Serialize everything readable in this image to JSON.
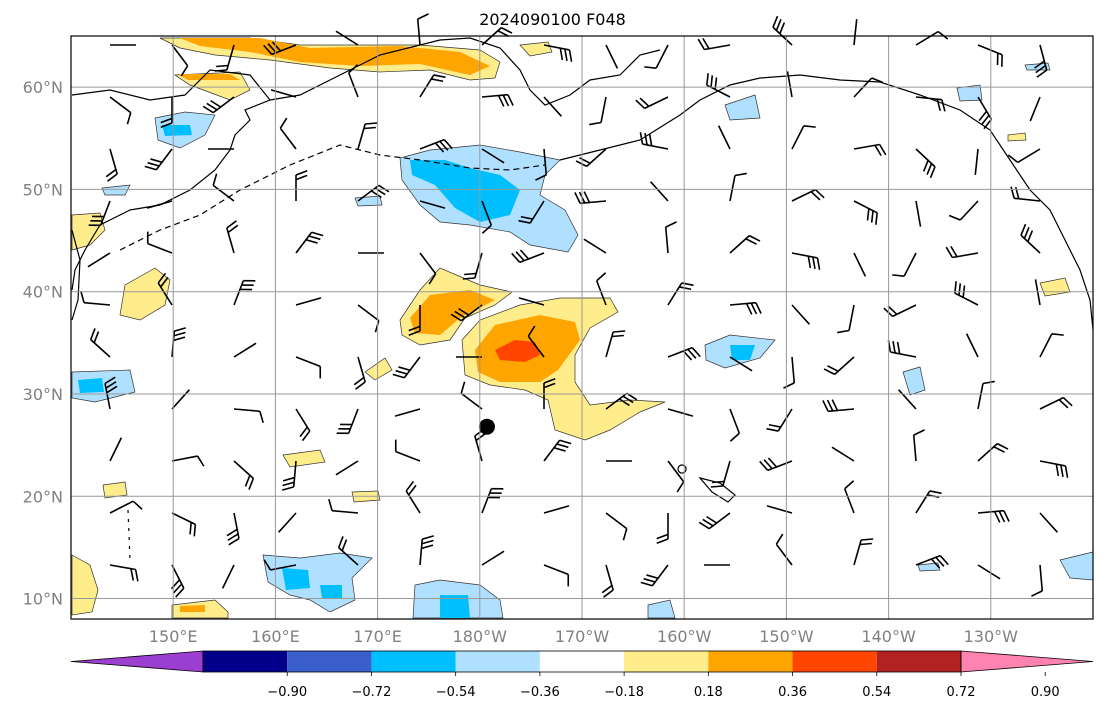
{
  "title": "2024090100 F048",
  "map": {
    "lat_ticks": [
      "60°N",
      "50°N",
      "40°N",
      "30°N",
      "20°N",
      "10°N"
    ],
    "lat_values": [
      60,
      50,
      40,
      30,
      20,
      10
    ],
    "lon_ticks": [
      "150°E",
      "160°E",
      "170°E",
      "180°W",
      "170°W",
      "160°W",
      "150°W",
      "140°W",
      "130°W"
    ],
    "lon_values": [
      150,
      160,
      170,
      180,
      190,
      200,
      210,
      220,
      230
    ],
    "extent": {
      "lon_min": 140,
      "lon_max": 240,
      "lat_min": 8,
      "lat_max": 65
    },
    "grid": true,
    "marker": {
      "lon": 180.7,
      "lat": 26.8
    }
  },
  "colorbar": {
    "tick_labels": [
      "−0.90",
      "−0.72",
      "−0.54",
      "−0.36",
      "−0.18",
      "0.18",
      "0.36",
      "0.54",
      "0.72",
      "0.90"
    ],
    "colors": [
      "#9b3fd1",
      "#00008b",
      "#3a5fcd",
      "#00bfff",
      "#b0e0ff",
      "#ffffff",
      "#ffec8b",
      "#ffa500",
      "#ff4500",
      "#b22222",
      "#ff83b0"
    ]
  }
}
